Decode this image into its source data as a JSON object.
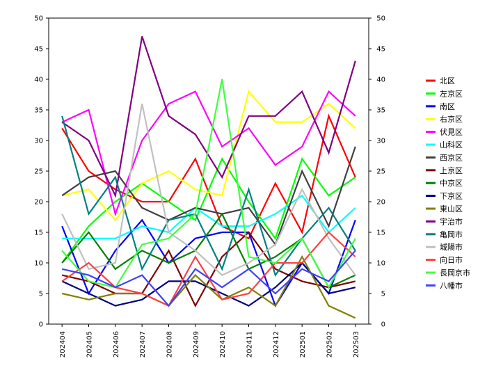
{
  "chart_data": {
    "type": "line",
    "title": "",
    "xlabel": "",
    "ylabel": "",
    "ylim": [
      0,
      50
    ],
    "y_ticks": [
      0,
      5,
      10,
      15,
      20,
      25,
      30,
      35,
      40,
      45,
      50
    ],
    "secondary_y_axis": true,
    "grid": false,
    "legend_position": "right",
    "categories": [
      "202404",
      "202405",
      "202406",
      "202407",
      "202408",
      "202409",
      "202410",
      "202411",
      "202412",
      "202501",
      "202502",
      "202503"
    ],
    "series": [
      {
        "name": "北区",
        "color": "#ff0000",
        "values": [
          32,
          25,
          22,
          20,
          20,
          27,
          16,
          14,
          23,
          15,
          34,
          24
        ]
      },
      {
        "name": "左京区",
        "color": "#00ff00",
        "values": [
          10,
          16,
          20,
          23,
          20,
          17,
          27,
          20,
          14,
          27,
          21,
          24
        ]
      },
      {
        "name": "南区",
        "color": "#0000ff",
        "values": [
          16,
          5,
          12,
          17,
          10,
          14,
          15,
          15,
          3,
          10,
          5,
          17
        ]
      },
      {
        "name": "右京区",
        "color": "#ffff00",
        "values": [
          21,
          22,
          17,
          23,
          25,
          22,
          21,
          38,
          33,
          33,
          36,
          32
        ]
      },
      {
        "name": "伏見区",
        "color": "#ff00ff",
        "values": [
          33,
          35,
          18,
          30,
          36,
          38,
          29,
          32,
          26,
          29,
          38,
          34
        ]
      },
      {
        "name": "山科区",
        "color": "#00ffff",
        "values": [
          14,
          14,
          14,
          16,
          15,
          19,
          16,
          16,
          18,
          21,
          15,
          19
        ]
      },
      {
        "name": "西京区",
        "color": "#404040",
        "values": [
          21,
          24,
          25,
          19,
          17,
          19,
          18,
          19,
          13,
          25,
          16,
          29
        ]
      },
      {
        "name": "上京区",
        "color": "#800000",
        "values": [
          8,
          7,
          5,
          5,
          12,
          3,
          11,
          15,
          9,
          7,
          6,
          7
        ]
      },
      {
        "name": "中京区",
        "color": "#008000",
        "values": [
          10,
          15,
          9,
          12,
          10,
          12,
          18,
          9,
          11,
          14,
          6,
          8
        ]
      },
      {
        "name": "下京区",
        "color": "#000080",
        "values": [
          7,
          5,
          3,
          4,
          7,
          7,
          5,
          3,
          6,
          10,
          5,
          6
        ]
      },
      {
        "name": "東山区",
        "color": "#808000",
        "values": [
          5,
          4,
          5,
          5,
          3,
          8,
          4,
          6,
          3,
          11,
          3,
          1
        ]
      },
      {
        "name": "宇治市",
        "color": "#800080",
        "values": [
          33,
          30,
          21,
          47,
          34,
          31,
          24,
          34,
          34,
          38,
          28,
          43
        ]
      },
      {
        "name": "亀岡市",
        "color": "#008080",
        "values": [
          34,
          18,
          24,
          9,
          17,
          18,
          9,
          22,
          8,
          14,
          19,
          12
        ]
      },
      {
        "name": "城陽市",
        "color": "#c0c0c0",
        "values": [
          18,
          9,
          10,
          36,
          15,
          12,
          8,
          10,
          13,
          22,
          14,
          8
        ]
      },
      {
        "name": "向日市",
        "color": "#ff4040",
        "values": [
          7,
          10,
          6,
          5,
          3,
          11,
          4,
          5,
          10,
          10,
          15,
          11
        ]
      },
      {
        "name": "長岡京市",
        "color": "#40ff40",
        "values": [
          12,
          7,
          6,
          13,
          14,
          18,
          40,
          11,
          10,
          14,
          6,
          14
        ]
      },
      {
        "name": "八幡市",
        "color": "#4040ff",
        "values": [
          9,
          8,
          6,
          8,
          3,
          9,
          6,
          9,
          5,
          9,
          7,
          12
        ]
      }
    ]
  }
}
